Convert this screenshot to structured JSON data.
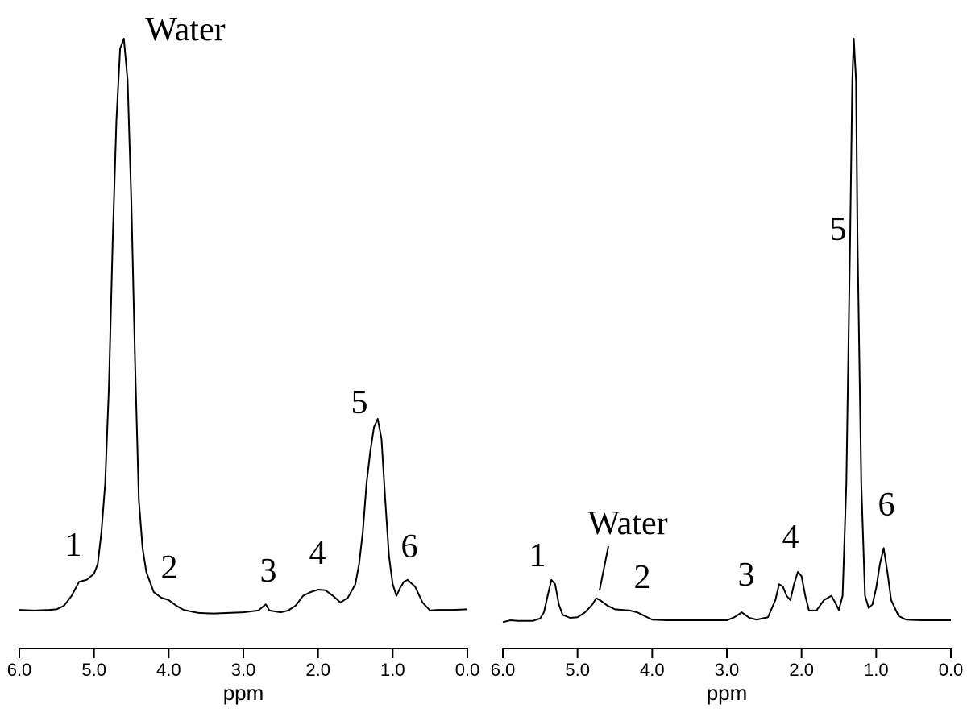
{
  "chart_data": [
    {
      "type": "line",
      "color": "#000000",
      "x_label": "ppm",
      "xlim": [
        6,
        0
      ],
      "xticks": [
        {
          "value": 6,
          "label": "6.0"
        },
        {
          "value": 5,
          "label": "5.0"
        },
        {
          "value": 4,
          "label": "4.0"
        },
        {
          "value": 3,
          "label": "3.0"
        },
        {
          "value": 2,
          "label": "2.0"
        },
        {
          "value": 1,
          "label": "1.0"
        },
        {
          "value": 0,
          "label": "0.0"
        }
      ],
      "x": [
        6,
        5.8,
        5.6,
        5.5,
        5.4,
        5.3,
        5.2,
        5.1,
        5,
        4.95,
        4.9,
        4.85,
        4.8,
        4.75,
        4.7,
        4.65,
        4.6,
        4.55,
        4.5,
        4.45,
        4.4,
        4.35,
        4.3,
        4.2,
        4.1,
        4,
        3.9,
        3.8,
        3.6,
        3.4,
        3.2,
        3,
        2.8,
        2.7,
        2.65,
        2.5,
        2.4,
        2.3,
        2.2,
        2.1,
        2,
        1.9,
        1.8,
        1.7,
        1.6,
        1.5,
        1.45,
        1.4,
        1.35,
        1.3,
        1.25,
        1.2,
        1.15,
        1.1,
        1.05,
        1,
        0.95,
        0.9,
        0.85,
        0.8,
        0.7,
        0.6,
        0.5,
        0.4,
        0.2,
        0
      ],
      "values": [
        6.3,
        6.2,
        6.3,
        6.4,
        7.0,
        8.6,
        10.9,
        11.2,
        12.2,
        13.8,
        19.1,
        27,
        42.8,
        66.4,
        86.2,
        98,
        99.6,
        92.8,
        73,
        46.7,
        24.3,
        16.4,
        12.5,
        9.2,
        8.3,
        7.9,
        7.0,
        6.3,
        5.8,
        5.7,
        5.8,
        5.9,
        6.2,
        7.2,
        6.2,
        5.9,
        6.2,
        7.0,
        8.6,
        9.2,
        9.6,
        9.5,
        8.6,
        7.5,
        8.3,
        10.5,
        13.8,
        19.1,
        27,
        32.2,
        36.2,
        37.5,
        34.2,
        24.3,
        15.1,
        10.5,
        8.6,
        9.9,
        10.9,
        11.2,
        10.1,
        7.5,
        6.2,
        6.3,
        6.3,
        6.4
      ],
      "annotations": [
        "Water",
        "1",
        "2",
        "3",
        "4",
        "5",
        "6"
      ]
    },
    {
      "type": "line",
      "color": "#000000",
      "x_label": "ppm",
      "xlim": [
        6,
        0
      ],
      "xticks": [
        {
          "value": 6,
          "label": "6.0"
        },
        {
          "value": 5,
          "label": "5.0"
        },
        {
          "value": 4,
          "label": "4.0"
        },
        {
          "value": 3,
          "label": "3.0"
        },
        {
          "value": 2,
          "label": "2.0"
        },
        {
          "value": 1,
          "label": "1.0"
        },
        {
          "value": 0,
          "label": "0.0"
        }
      ],
      "x": [
        6,
        5.9,
        5.8,
        5.6,
        5.5,
        5.45,
        5.4,
        5.35,
        5.3,
        5.25,
        5.2,
        5.1,
        5,
        4.9,
        4.8,
        4.75,
        4.7,
        4.6,
        4.5,
        4.3,
        4.2,
        4.1,
        4,
        3.8,
        3,
        2.9,
        2.8,
        2.7,
        2.6,
        2.45,
        2.35,
        2.3,
        2.25,
        2.2,
        2.15,
        2.1,
        2.05,
        2,
        1.95,
        1.9,
        1.8,
        1.7,
        1.6,
        1.55,
        1.5,
        1.45,
        1.4,
        1.35,
        1.32,
        1.3,
        1.27,
        1.25,
        1.2,
        1.15,
        1.1,
        1.05,
        1,
        0.95,
        0.9,
        0.85,
        0.8,
        0.7,
        0.6,
        0.4,
        0
      ],
      "values": [
        4.3,
        4.6,
        4.5,
        4.5,
        4.9,
        5.9,
        8.6,
        11.2,
        10.5,
        7.2,
        5.5,
        5.0,
        5.1,
        5.9,
        7.2,
        8.2,
        7.9,
        7.0,
        6.4,
        6.2,
        5.9,
        5.3,
        4.7,
        4.6,
        4.6,
        5.1,
        5.9,
        5.0,
        4.7,
        5.1,
        7.9,
        10.5,
        10.1,
        8.6,
        7.9,
        10.5,
        12.5,
        11.8,
        8.6,
        6.2,
        6.2,
        7.9,
        8.6,
        7.5,
        6.3,
        8.6,
        27,
        66.4,
        92.8,
        99.6,
        92.8,
        66.4,
        27,
        8.6,
        6.6,
        7.2,
        9.9,
        13.8,
        16.4,
        12.5,
        7.9,
        5.3,
        4.7,
        4.6,
        4.6
      ],
      "annotations": [
        "1",
        "Water",
        "2",
        "3",
        "4",
        "5",
        "6"
      ]
    }
  ]
}
